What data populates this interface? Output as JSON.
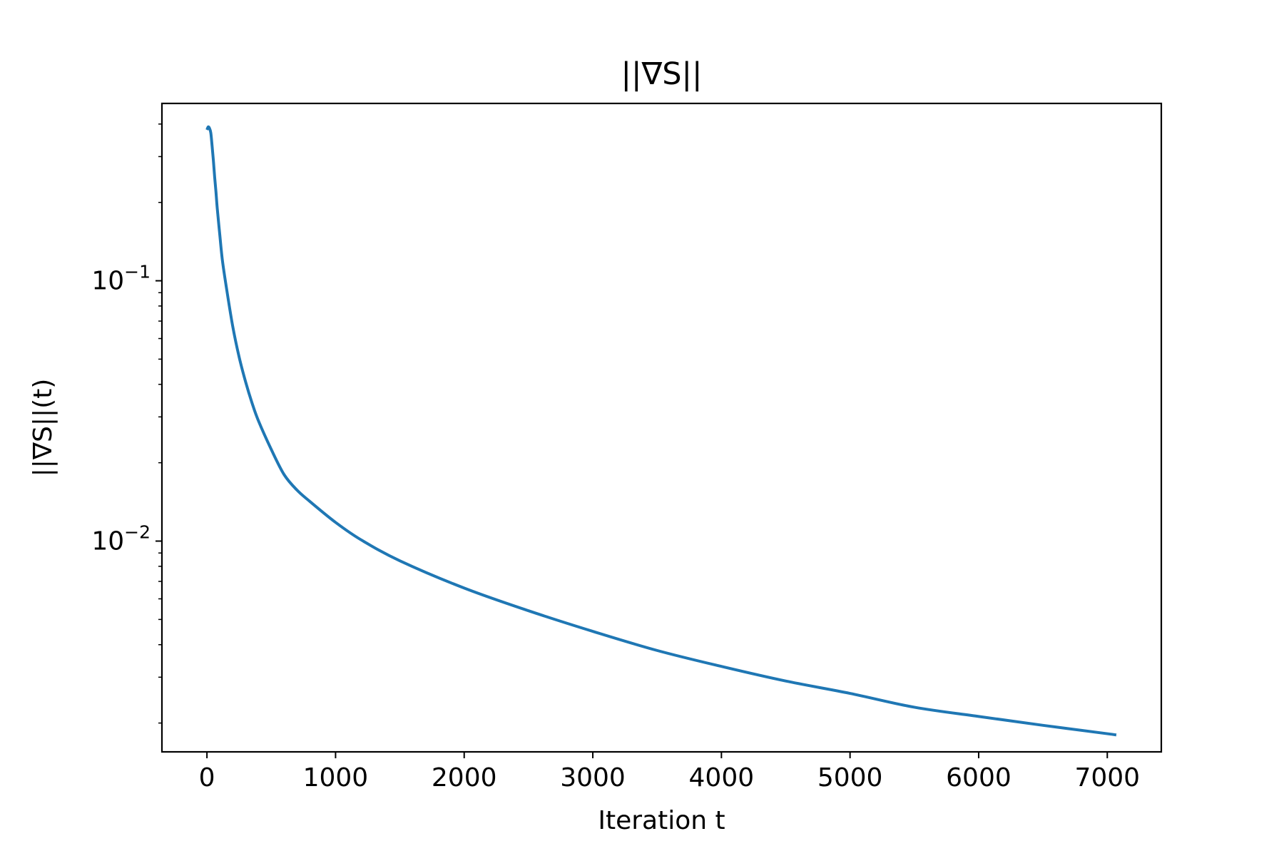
{
  "chart_data": {
    "type": "line",
    "title": "||∇S||",
    "xlabel": "Iteration t",
    "ylabel": "||∇S||(t)",
    "yscale": "log",
    "grid": false,
    "legend": null,
    "xlim": [
      -350,
      7420
    ],
    "ylim": [
      0.00155,
      0.48
    ],
    "xticks": [
      {
        "value": 0,
        "label": "0"
      },
      {
        "value": 1000,
        "label": "1000"
      },
      {
        "value": 2000,
        "label": "2000"
      },
      {
        "value": 3000,
        "label": "3000"
      },
      {
        "value": 4000,
        "label": "4000"
      },
      {
        "value": 5000,
        "label": "5000"
      },
      {
        "value": 6000,
        "label": "6000"
      },
      {
        "value": 7000,
        "label": "7000"
      }
    ],
    "yticks": [
      {
        "value": 0.1,
        "base": "10",
        "exp": "−1"
      },
      {
        "value": 0.01,
        "base": "10",
        "exp": "−2"
      }
    ],
    "series": [
      {
        "color": "#1f77b4",
        "x": [
          0,
          10,
          20,
          30,
          40,
          50,
          60,
          70,
          80,
          100,
          120,
          150,
          200,
          250,
          300,
          350,
          400,
          500,
          600,
          700,
          800,
          1000,
          1200,
          1500,
          2000,
          2500,
          3000,
          3500,
          4000,
          4500,
          5000,
          5500,
          6000,
          6500,
          7000,
          7070
        ],
        "y": [
          0.38,
          0.39,
          0.385,
          0.37,
          0.33,
          0.29,
          0.25,
          0.22,
          0.19,
          0.15,
          0.12,
          0.095,
          0.067,
          0.051,
          0.041,
          0.034,
          0.029,
          0.0225,
          0.018,
          0.0157,
          0.0142,
          0.0118,
          0.0101,
          0.0084,
          0.0066,
          0.0054,
          0.0045,
          0.0038,
          0.0033,
          0.0029,
          0.0026,
          0.0023,
          0.00212,
          0.00196,
          0.00182,
          0.0018
        ]
      }
    ]
  }
}
